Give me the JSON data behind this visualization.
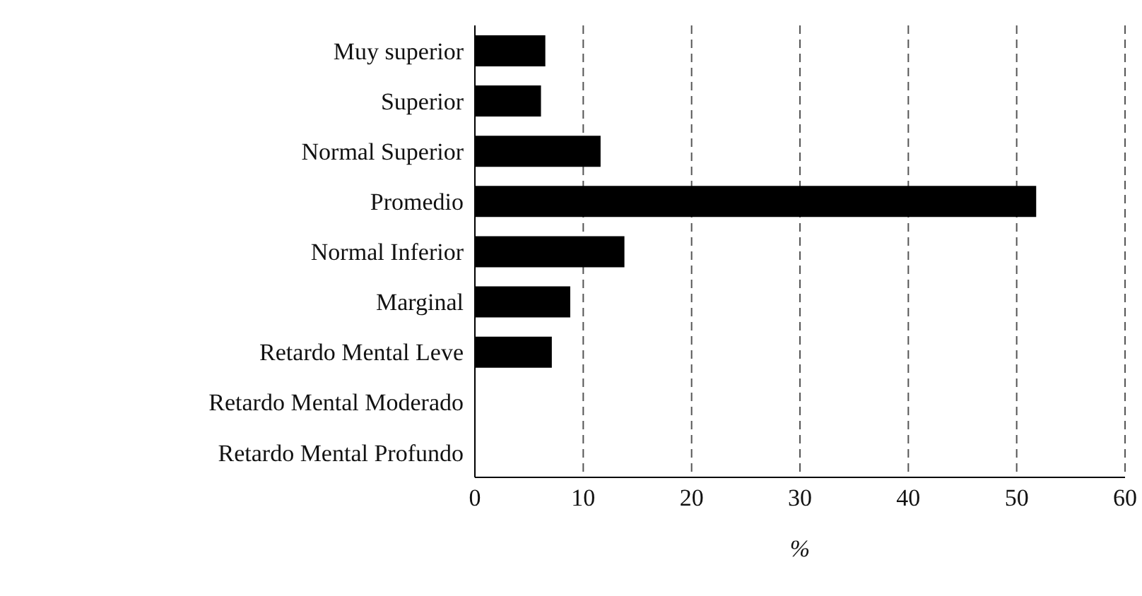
{
  "chart_data": {
    "type": "bar",
    "orientation": "horizontal",
    "xlabel": "%",
    "categories": [
      "Muy superior",
      "Superior",
      "Normal Superior",
      "Promedio",
      "Normal Inferior",
      "Marginal",
      "Retardo Mental Leve",
      "Retardo  Mental  Moderado",
      "Retardo  Mental  Profundo"
    ],
    "values": [
      6.5,
      6.1,
      11.6,
      51.8,
      13.8,
      8.8,
      7.1,
      0,
      0
    ],
    "color": "#000000",
    "xlim": [
      0,
      60
    ],
    "xticks": [
      0,
      10,
      20,
      30,
      40,
      50,
      60
    ],
    "grid": "x"
  }
}
